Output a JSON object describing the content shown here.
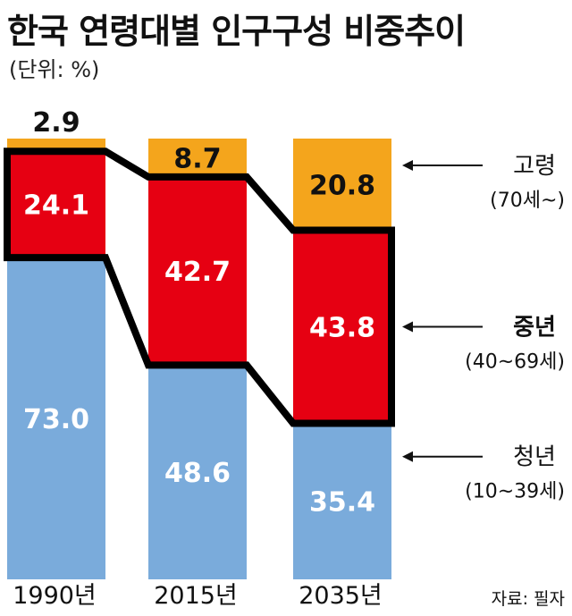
{
  "title": "한국 연령대별 인구구성 비중추이",
  "subtitle": "(단위: %)",
  "source": "자료: 필자",
  "chart_data": {
    "type": "bar",
    "stacked": true,
    "title": "한국 연령대별 인구구성 비중추이",
    "unit": "(단위: %)",
    "categories": [
      "1990년",
      "2015년",
      "2035년"
    ],
    "series": [
      {
        "name": "청년",
        "sub": "(10~39세)",
        "values": [
          73.0,
          48.6,
          35.4
        ],
        "color": "#7aabdb",
        "label_color": "#ffffff"
      },
      {
        "name": "중년",
        "sub": "(40~69세)",
        "values": [
          24.1,
          42.7,
          43.8
        ],
        "color": "#e60012",
        "label_color": "#ffffff",
        "highlight": true
      },
      {
        "name": "고령",
        "sub": "(70세~)",
        "values": [
          2.9,
          8.7,
          20.8
        ],
        "color": "#f4a51c",
        "label_color": "#111111"
      }
    ],
    "value_labels": [
      [
        "73.0",
        "48.6",
        "35.4"
      ],
      [
        "24.1",
        "42.7",
        "43.8"
      ],
      [
        "2.9",
        "8.7",
        "20.8"
      ]
    ],
    "ylim": [
      0,
      100
    ],
    "grid": false,
    "legend_placement": "right"
  }
}
